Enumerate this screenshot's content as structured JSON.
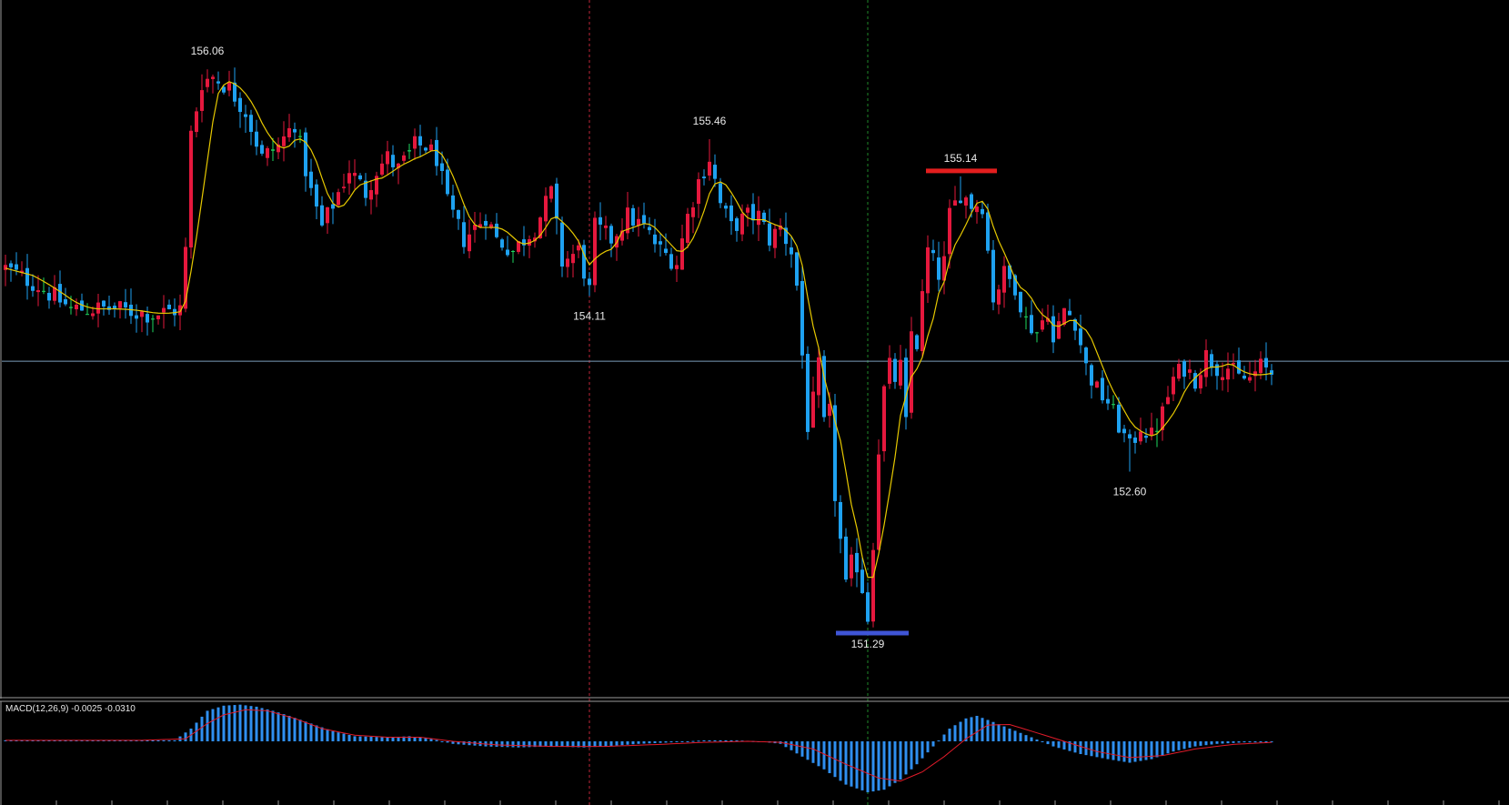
{
  "colors": {
    "background": "#000000",
    "bull": "#e5183d",
    "bear": "#1ea1f0",
    "doji": "#1ed760",
    "ma_line": "#e6c800",
    "crosshair": "#7a9cb8",
    "vline_red": "#c0263a",
    "vline_green": "#1f8a2a",
    "high_marker": "#e31e1e",
    "low_marker": "#3f55d6",
    "macd_hist": "#2f8ff0",
    "macd_signal": "#e11b2a",
    "text": "#e8e8e8",
    "frame": "#9a9a9a"
  },
  "chart_data": [
    {
      "type": "candlestick",
      "ylim": [
        150.75,
        156.5
      ],
      "annotations": [
        {
          "label": "156.06",
          "value": 156.06,
          "kind": "high",
          "index": 37
        },
        {
          "label": "154.11",
          "value": 154.11,
          "kind": "low",
          "index": 107
        },
        {
          "label": "155.46",
          "value": 155.46,
          "kind": "high",
          "index": 129
        },
        {
          "label": "151.29",
          "value": 151.29,
          "kind": "low",
          "index": 158
        },
        {
          "label": "155.14",
          "value": 155.14,
          "kind": "high",
          "index": 175
        },
        {
          "label": "152.60",
          "value": 152.6,
          "kind": "low",
          "index": 206
        }
      ],
      "horizontal_marker_high": 155.14,
      "horizontal_marker_low": 151.29,
      "crosshair_price": 153.55,
      "vertical_lines": [
        {
          "index": 107,
          "color": "red"
        },
        {
          "index": 158,
          "color": "green"
        }
      ],
      "moving_average": "yellow",
      "anchors": [
        [
          0,
          154.35
        ],
        [
          6,
          154.2
        ],
        [
          12,
          154.0
        ],
        [
          20,
          154.0
        ],
        [
          27,
          153.95
        ],
        [
          32,
          154.0
        ],
        [
          33,
          154.5
        ],
        [
          34,
          155.5
        ],
        [
          36,
          155.95
        ],
        [
          38,
          156.0
        ],
        [
          41,
          155.9
        ],
        [
          44,
          155.7
        ],
        [
          47,
          155.3
        ],
        [
          50,
          155.4
        ],
        [
          53,
          155.6
        ],
        [
          56,
          155.0
        ],
        [
          58,
          154.7
        ],
        [
          60,
          154.9
        ],
        [
          63,
          155.2
        ],
        [
          66,
          155.0
        ],
        [
          68,
          155.2
        ],
        [
          70,
          155.3
        ],
        [
          72,
          155.2
        ],
        [
          75,
          155.4
        ],
        [
          77,
          155.4
        ],
        [
          79,
          155.3
        ],
        [
          81,
          154.9
        ],
        [
          84,
          154.6
        ],
        [
          86,
          154.7
        ],
        [
          88,
          154.8
        ],
        [
          90,
          154.6
        ],
        [
          93,
          154.5
        ],
        [
          97,
          154.7
        ],
        [
          100,
          155.0
        ],
        [
          102,
          154.4
        ],
        [
          105,
          154.5
        ],
        [
          107,
          154.15
        ],
        [
          108,
          154.7
        ],
        [
          111,
          154.6
        ],
        [
          114,
          154.8
        ],
        [
          117,
          154.7
        ],
        [
          120,
          154.5
        ],
        [
          123,
          154.4
        ],
        [
          125,
          154.8
        ],
        [
          127,
          155.1
        ],
        [
          129,
          155.3
        ],
        [
          131,
          154.9
        ],
        [
          133,
          154.7
        ],
        [
          136,
          154.8
        ],
        [
          138,
          154.8
        ],
        [
          140,
          154.6
        ],
        [
          142,
          154.7
        ],
        [
          144,
          154.5
        ],
        [
          145,
          154.2
        ],
        [
          146,
          153.6
        ],
        [
          147,
          153.0
        ],
        [
          148,
          153.2
        ],
        [
          149,
          153.5
        ],
        [
          150,
          153.0
        ],
        [
          151,
          153.1
        ],
        [
          152,
          152.4
        ],
        [
          153,
          152.0
        ],
        [
          154,
          151.6
        ],
        [
          155,
          151.8
        ],
        [
          156,
          151.8
        ],
        [
          157,
          151.6
        ],
        [
          158,
          151.35
        ],
        [
          159,
          152.0
        ],
        [
          160,
          152.8
        ],
        [
          161,
          153.3
        ],
        [
          162,
          153.5
        ],
        [
          163,
          153.4
        ],
        [
          164,
          153.5
        ],
        [
          165,
          153.0
        ],
        [
          166,
          153.8
        ],
        [
          167,
          153.7
        ],
        [
          168,
          154.1
        ],
        [
          169,
          154.5
        ],
        [
          171,
          154.3
        ],
        [
          172,
          154.4
        ],
        [
          173,
          154.8
        ],
        [
          175,
          155.0
        ],
        [
          177,
          154.9
        ],
        [
          179,
          154.9
        ],
        [
          181,
          154.1
        ],
        [
          183,
          154.3
        ],
        [
          185,
          154.2
        ],
        [
          187,
          153.9
        ],
        [
          189,
          153.8
        ],
        [
          191,
          154.0
        ],
        [
          192,
          153.7
        ],
        [
          194,
          154.0
        ],
        [
          196,
          153.9
        ],
        [
          198,
          153.5
        ],
        [
          200,
          153.3
        ],
        [
          202,
          153.2
        ],
        [
          204,
          153.0
        ],
        [
          206,
          152.8
        ],
        [
          208,
          153.0
        ],
        [
          210,
          152.9
        ],
        [
          212,
          153.1
        ],
        [
          214,
          153.4
        ],
        [
          216,
          153.5
        ],
        [
          218,
          153.4
        ],
        [
          220,
          153.6
        ],
        [
          222,
          153.5
        ],
        [
          224,
          153.5
        ],
        [
          226,
          153.4
        ],
        [
          228,
          153.4
        ],
        [
          230,
          153.5
        ],
        [
          232,
          153.45
        ]
      ],
      "n_bars": 233
    },
    {
      "type": "macd",
      "title": "MACD(12,26,9) -0.0025 -0.0310",
      "hist_anchors": [
        [
          0,
          0.02
        ],
        [
          20,
          0.02
        ],
        [
          31,
          0.02
        ],
        [
          34,
          0.25
        ],
        [
          37,
          0.6
        ],
        [
          40,
          0.7
        ],
        [
          43,
          0.72
        ],
        [
          46,
          0.68
        ],
        [
          49,
          0.6
        ],
        [
          52,
          0.5
        ],
        [
          56,
          0.35
        ],
        [
          60,
          0.2
        ],
        [
          64,
          0.1
        ],
        [
          70,
          0.08
        ],
        [
          74,
          0.1
        ],
        [
          78,
          0.05
        ],
        [
          82,
          -0.05
        ],
        [
          88,
          -0.1
        ],
        [
          94,
          -0.12
        ],
        [
          100,
          -0.1
        ],
        [
          106,
          -0.12
        ],
        [
          110,
          -0.1
        ],
        [
          116,
          -0.05
        ],
        [
          122,
          -0.02
        ],
        [
          128,
          0.02
        ],
        [
          134,
          0.02
        ],
        [
          138,
          0.0
        ],
        [
          142,
          -0.05
        ],
        [
          146,
          -0.3
        ],
        [
          150,
          -0.55
        ],
        [
          154,
          -0.85
        ],
        [
          158,
          -1.0
        ],
        [
          161,
          -0.95
        ],
        [
          164,
          -0.75
        ],
        [
          167,
          -0.45
        ],
        [
          170,
          -0.1
        ],
        [
          173,
          0.25
        ],
        [
          176,
          0.45
        ],
        [
          178,
          0.5
        ],
        [
          181,
          0.38
        ],
        [
          184,
          0.25
        ],
        [
          188,
          0.08
        ],
        [
          192,
          -0.1
        ],
        [
          197,
          -0.25
        ],
        [
          202,
          -0.35
        ],
        [
          206,
          -0.42
        ],
        [
          210,
          -0.35
        ],
        [
          214,
          -0.2
        ],
        [
          218,
          -0.1
        ],
        [
          222,
          -0.05
        ],
        [
          227,
          -0.02
        ],
        [
          232,
          -0.02
        ]
      ],
      "signal_anchors": [
        [
          0,
          0.02
        ],
        [
          25,
          0.02
        ],
        [
          33,
          0.05
        ],
        [
          37,
          0.35
        ],
        [
          40,
          0.52
        ],
        [
          44,
          0.62
        ],
        [
          48,
          0.6
        ],
        [
          53,
          0.45
        ],
        [
          58,
          0.25
        ],
        [
          64,
          0.12
        ],
        [
          70,
          0.08
        ],
        [
          76,
          0.08
        ],
        [
          82,
          0.0
        ],
        [
          90,
          -0.07
        ],
        [
          100,
          -0.1
        ],
        [
          110,
          -0.1
        ],
        [
          120,
          -0.06
        ],
        [
          128,
          -0.02
        ],
        [
          136,
          0.0
        ],
        [
          142,
          -0.02
        ],
        [
          148,
          -0.15
        ],
        [
          154,
          -0.45
        ],
        [
          160,
          -0.72
        ],
        [
          164,
          -0.78
        ],
        [
          168,
          -0.6
        ],
        [
          172,
          -0.3
        ],
        [
          176,
          0.05
        ],
        [
          180,
          0.32
        ],
        [
          184,
          0.33
        ],
        [
          188,
          0.2
        ],
        [
          194,
          0.0
        ],
        [
          200,
          -0.2
        ],
        [
          206,
          -0.32
        ],
        [
          212,
          -0.28
        ],
        [
          218,
          -0.15
        ],
        [
          225,
          -0.06
        ],
        [
          232,
          -0.02
        ]
      ]
    }
  ]
}
